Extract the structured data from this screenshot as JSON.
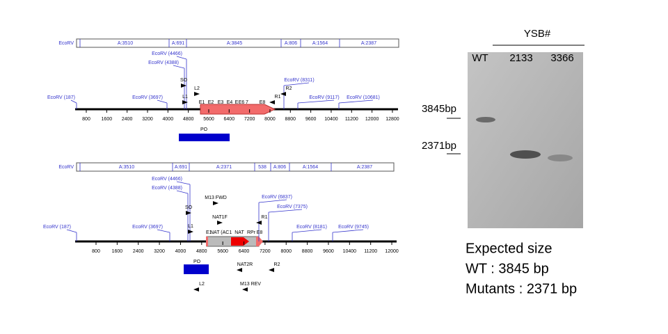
{
  "top_map": {
    "row_label": "EcoRV",
    "segments": [
      "A:3510",
      "A:691",
      "A:3845",
      "A:806",
      "A:1564",
      "A:2387"
    ],
    "sites": [
      "EcoRV (187)",
      "EcoRV (3697)",
      "EcoRV (4466)",
      "EcoRV (4388)",
      "EcoRV (8311)",
      "EcoRV (9117)",
      "EcoRV (10681)"
    ],
    "primers": [
      "SO",
      "L1",
      "L2",
      "R1",
      "R2"
    ],
    "exons": [
      "E1",
      "E2",
      "E3",
      "E4",
      "E",
      "E6",
      "7",
      "E8"
    ],
    "ticks": [
      800,
      1600,
      2400,
      3200,
      4000,
      4800,
      5600,
      6400,
      7200,
      8000,
      8800,
      9600,
      10400,
      11200,
      12000,
      12800
    ],
    "probe": "PO"
  },
  "bottom_map": {
    "row_label": "EcoRV",
    "segments": [
      "A:3510",
      "A:691",
      "A:2371",
      "538",
      "A:806",
      "A:1564",
      "A:2387"
    ],
    "sites": [
      "EcoRV (187)",
      "EcoRV (3697)",
      "EcoRV (4466)",
      "EcoRV (4388)",
      "EcoRV (6837)",
      "EcoRV (7375)",
      "EcoRV (8181)",
      "EcoRV (9745)"
    ],
    "primers": [
      "M13 FWD",
      "SO",
      "NAT1F",
      "L1",
      "R1",
      "NAT2R",
      "R2",
      "M13 REV",
      "L2"
    ],
    "cassette": [
      "E1",
      "NAT (AC1",
      "NAT",
      "RPr",
      "E8"
    ],
    "ticks": [
      800,
      1600,
      2400,
      3200,
      4000,
      4800,
      5600,
      6400,
      7200,
      8000,
      8800,
      9600,
      10400,
      11200,
      12000
    ],
    "probe": "PO"
  },
  "gel": {
    "group": "YSB#",
    "lanes": [
      "WT",
      "2133",
      "3366"
    ],
    "markers": [
      "3845bp",
      "2371bp"
    ]
  },
  "caption": [
    "Expected size",
    "WT : 3845 bp",
    "Mutants : 2371 bp"
  ]
}
